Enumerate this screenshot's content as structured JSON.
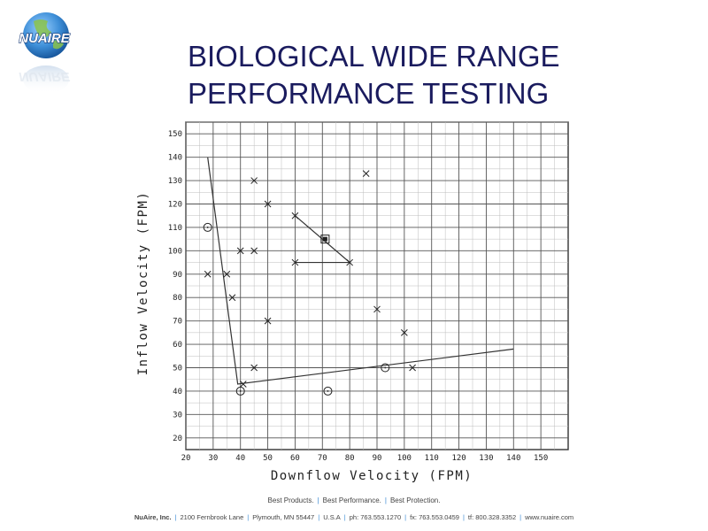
{
  "brand": {
    "logo_text": "NUAIRE"
  },
  "slide": {
    "title_line1": "BIOLOGICAL WIDE RANGE",
    "title_line2": "PERFORMANCE TESTING"
  },
  "chart_data": {
    "type": "scatter",
    "title": "",
    "xlabel": "Downflow Velocity (FPM)",
    "ylabel": "Inflow Velocity (FPM)",
    "xlim": [
      20,
      160
    ],
    "ylim": [
      15,
      155
    ],
    "grid": true,
    "x_ticks": [
      20,
      30,
      40,
      50,
      60,
      70,
      80,
      90,
      100,
      110,
      120,
      130,
      140,
      150
    ],
    "y_ticks": [
      20,
      30,
      40,
      50,
      60,
      70,
      80,
      90,
      100,
      110,
      120,
      130,
      140,
      150
    ],
    "markers_x": [
      [
        28,
        90
      ],
      [
        35,
        90
      ],
      [
        37,
        80
      ],
      [
        40,
        100
      ],
      [
        45,
        100
      ],
      [
        45,
        130
      ],
      [
        50,
        120
      ],
      [
        50,
        70
      ],
      [
        45,
        50
      ],
      [
        41,
        43
      ],
      [
        60,
        115
      ],
      [
        60,
        95
      ],
      [
        80,
        95
      ],
      [
        86,
        133
      ],
      [
        90,
        75
      ],
      [
        100,
        65
      ],
      [
        103,
        50
      ]
    ],
    "markers_circle": [
      [
        28,
        110
      ],
      [
        40,
        40
      ],
      [
        72,
        40
      ],
      [
        93,
        50
      ]
    ],
    "markers_square": [
      [
        71,
        105
      ]
    ],
    "boundary_lines": [
      {
        "points": [
          [
            28,
            140
          ],
          [
            39,
            43
          ],
          [
            140,
            58
          ]
        ]
      },
      {
        "points": [
          [
            60,
            115
          ],
          [
            80,
            95
          ],
          [
            60,
            95
          ]
        ]
      }
    ]
  },
  "footer": {
    "tagline": [
      "Best Products.",
      "Best Performance.",
      "Best Protection."
    ],
    "company": "NuAire, Inc.",
    "address": "2100 Fernbrook Lane",
    "city": "Plymouth, MN 55447",
    "country": "U.S.A",
    "phone": "ph: 763.553.1270",
    "fax": "fx: 763.553.0459",
    "tollfree": "tf: 800.328.3352",
    "web": "www.nuaire.com"
  }
}
